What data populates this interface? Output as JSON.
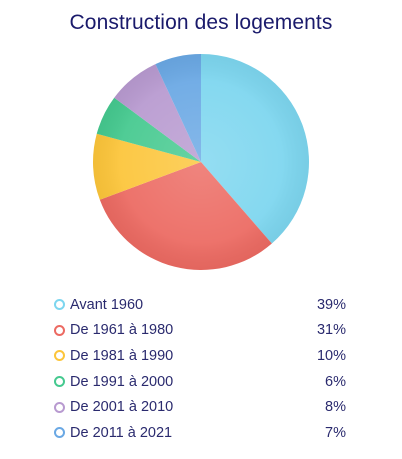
{
  "chart_data": {
    "type": "pie",
    "title": "Construction des logements",
    "categories": [
      "Avant 1960",
      "De 1961 à 1980",
      "De 1981 à 1990",
      "De 1991 à 2000",
      "De 2001 à 2010",
      "De 2011 à 2021"
    ],
    "values": [
      39,
      31,
      10,
      6,
      8,
      7
    ],
    "value_labels": [
      "39%",
      "31%",
      "10%",
      "6%",
      "8%",
      "7%"
    ],
    "colors": [
      "#7dd6ef",
      "#ec6a62",
      "#fcc53a",
      "#45c98f",
      "#b89ad0",
      "#6aa8e4"
    ],
    "legend_position": "bottom"
  }
}
